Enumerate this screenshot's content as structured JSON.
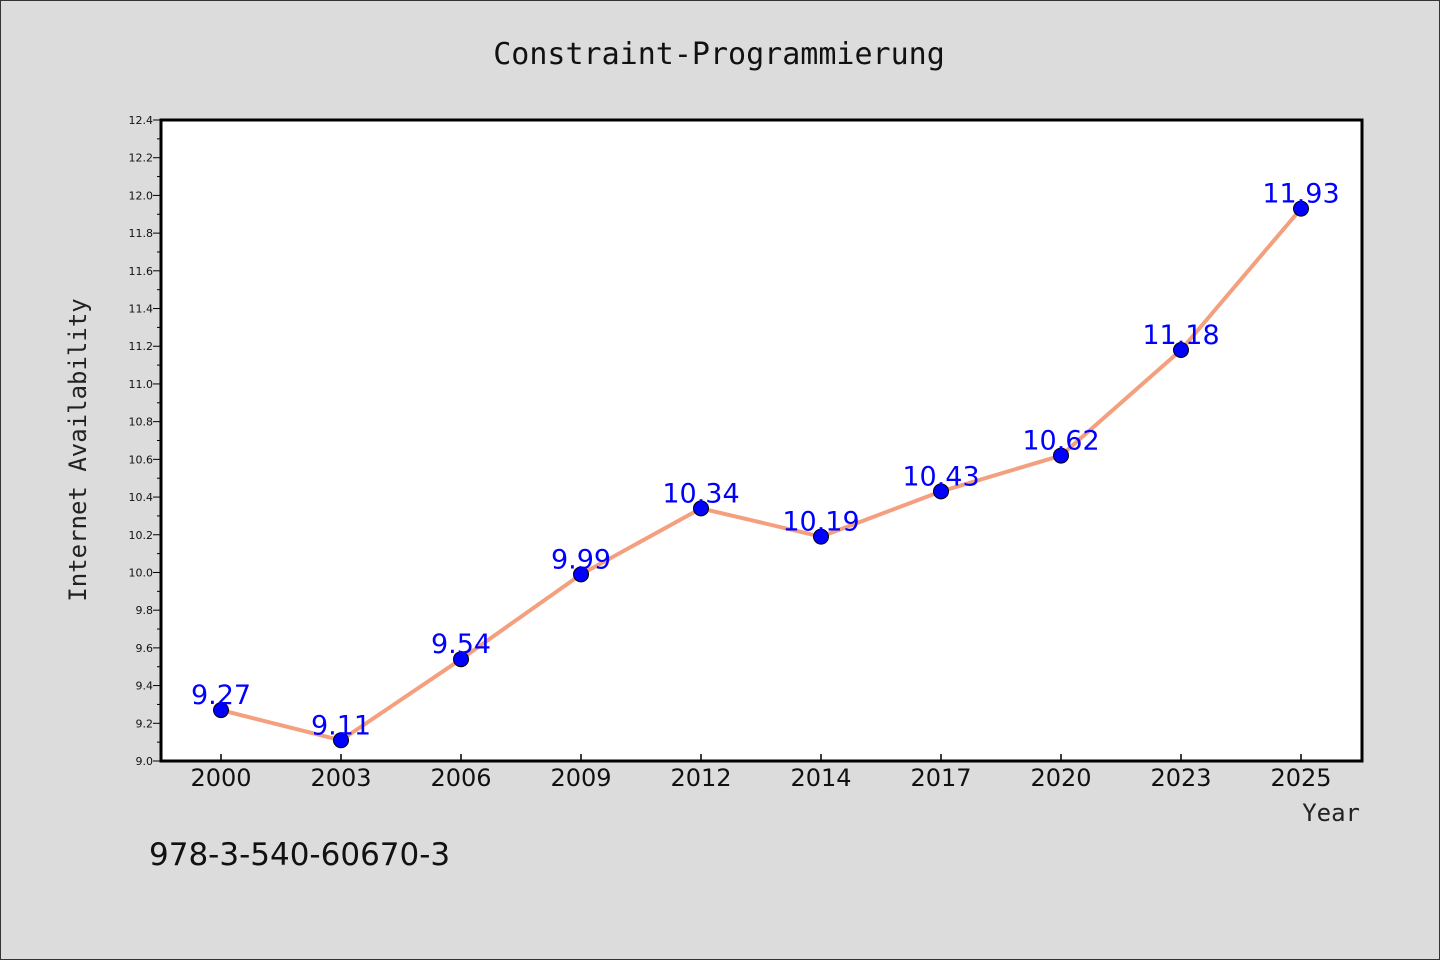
{
  "chart_data": {
    "type": "line",
    "title": "Constraint-Programmierung",
    "xlabel": "Year",
    "ylabel": "Internet Availability",
    "categories": [
      "2000",
      "2003",
      "2006",
      "2009",
      "2012",
      "2014",
      "2017",
      "2020",
      "2023",
      "2025"
    ],
    "series": [
      {
        "values": [
          9.27,
          9.11,
          9.54,
          9.99,
          10.34,
          10.19,
          10.43,
          10.62,
          11.18,
          11.93
        ],
        "line_color": "#f4a07e",
        "marker_color": "#0000ff"
      }
    ],
    "data_labels": [
      "9.27",
      "9.11",
      "9.54",
      "9.99",
      "10.34",
      "10.19",
      "10.43",
      "10.62",
      "11.18",
      "11.93"
    ],
    "ylim": [
      9.0,
      12.4
    ],
    "yticks": [
      "9.0",
      "9.2",
      "9.4",
      "9.6",
      "9.8",
      "10.0",
      "10.2",
      "10.4",
      "10.6",
      "10.8",
      "11.0",
      "11.2",
      "11.4",
      "11.6",
      "11.8",
      "12.0",
      "12.2",
      "12.4"
    ],
    "grid": false,
    "legend": "none"
  },
  "footer_text": "978-3-540-60670-3"
}
